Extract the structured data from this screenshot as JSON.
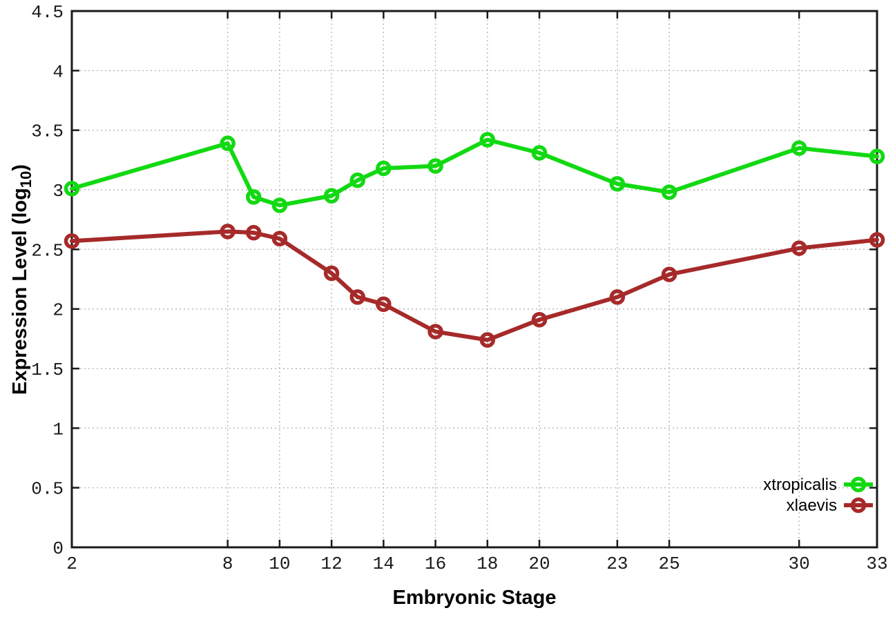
{
  "chart_data": {
    "type": "line",
    "title": "",
    "xlabel": "Embryonic Stage",
    "ylabel": "Expression Level (log10)",
    "ylabel_parts": {
      "main": "Expression Level (log",
      "sub": "10",
      "close": ")"
    },
    "xlim": [
      2,
      33
    ],
    "ylim": [
      0,
      4.5
    ],
    "grid": true,
    "legend_position": "inside-bottom-right",
    "x_tick_values": [
      2,
      8,
      10,
      12,
      14,
      16,
      18,
      20,
      23,
      25,
      30,
      33
    ],
    "x_tick_labels": [
      "2",
      "8",
      "10",
      "12",
      "14",
      "16",
      "18",
      "20",
      "23",
      "25",
      "30",
      "33"
    ],
    "y_tick_values": [
      0,
      0.5,
      1,
      1.5,
      2,
      2.5,
      3,
      3.5,
      4,
      4.5
    ],
    "y_tick_labels": [
      "0",
      "0.5",
      "1",
      "1.5",
      "2",
      "2.5",
      "3",
      "3.5",
      "4",
      "4.5"
    ],
    "x": [
      2,
      8,
      9,
      10,
      12,
      13,
      14,
      16,
      18,
      20,
      23,
      25,
      30,
      33
    ],
    "series": [
      {
        "name": "xtropicalis",
        "color": "#12d912",
        "values": [
          3.01,
          3.39,
          2.94,
          2.87,
          2.95,
          3.08,
          3.18,
          3.2,
          3.42,
          3.31,
          3.05,
          2.98,
          3.35,
          3.28
        ]
      },
      {
        "name": "xlaevis",
        "color": "#a62a2a",
        "values": [
          2.57,
          2.65,
          2.64,
          2.59,
          2.3,
          2.1,
          2.04,
          1.81,
          1.74,
          1.91,
          2.1,
          2.29,
          2.51,
          2.58
        ]
      }
    ],
    "colors": {
      "grid": "#b5b5b5",
      "border": "#1a1a1a",
      "tick_text": "#1a1a1a"
    }
  }
}
